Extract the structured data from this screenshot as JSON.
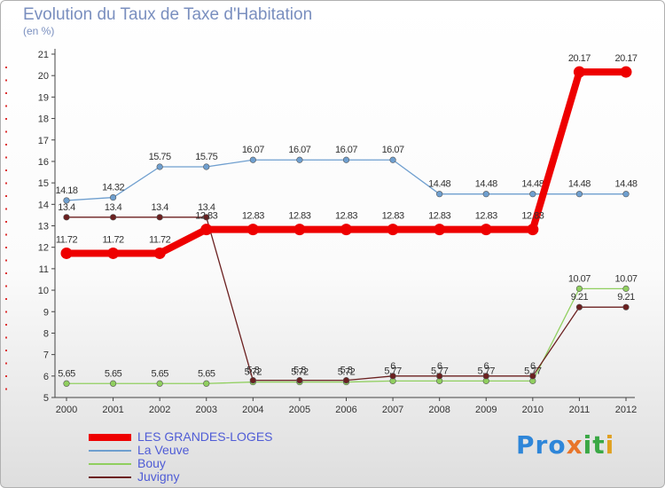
{
  "title": "Evolution du Taux de Taxe d'Habitation",
  "subtitle": "(en %)",
  "logo": {
    "text": "Proxiti",
    "p1": "Pro",
    "p2": "x",
    "p3": "it",
    "p4": "i"
  },
  "chart_data": {
    "type": "line",
    "title": "Evolution du Taux de Taxe d'Habitation",
    "ylabel": "(en %)",
    "xlabel": "",
    "ylim": [
      5,
      21
    ],
    "yticks": [
      "5",
      "6",
      "7",
      "8",
      "9",
      "10",
      "11",
      "12",
      "13",
      "14",
      "15",
      "16",
      "17",
      "18",
      "19",
      "20",
      "21"
    ],
    "categories": [
      "2000",
      "2001",
      "2002",
      "2003",
      "2004",
      "2005",
      "2006",
      "2007",
      "2008",
      "2009",
      "2010",
      "2011",
      "2012"
    ],
    "series": [
      {
        "name": "La Veuve",
        "color": "#6f9fcf",
        "thick": false,
        "values": [
          14.18,
          14.32,
          15.75,
          15.75,
          16.07,
          16.07,
          16.07,
          16.07,
          14.48,
          14.48,
          14.48,
          14.48,
          14.48
        ],
        "labels": [
          "14.18",
          "14.32",
          "15.75",
          "15.75",
          "16.07",
          "16.07",
          "16.07",
          "16.07",
          "14.48",
          "14.48",
          "14.48",
          "14.48",
          "14.48"
        ]
      },
      {
        "name": "Bouy",
        "color": "#90cf5f",
        "thick": false,
        "values": [
          5.65,
          5.65,
          5.65,
          5.65,
          5.72,
          5.72,
          5.72,
          5.77,
          5.77,
          5.77,
          5.77,
          10.07,
          10.07
        ],
        "labels": [
          "5.65",
          "5.65",
          "5.65",
          "5.65",
          "5.72",
          "5.72",
          "5.72",
          "5.77",
          "5.77",
          "5.77",
          "5.77",
          "10.07",
          "10.07"
        ]
      },
      {
        "name": "Juvigny",
        "color": "#6b2020",
        "thick": false,
        "values": [
          13.4,
          13.4,
          13.4,
          13.4,
          5.8,
          5.8,
          5.8,
          6,
          6,
          6,
          6,
          9.21,
          9.21
        ],
        "labels": [
          "13.4",
          "13.4",
          "13.4",
          "13.4",
          "5.8",
          "5.8",
          "5.8",
          "6",
          "6",
          "6",
          "6",
          "9.21",
          "9.21"
        ]
      },
      {
        "name": "LES GRANDES-LOGES",
        "color": "#ee0000",
        "thick": true,
        "values": [
          11.72,
          11.72,
          11.72,
          12.83,
          12.83,
          12.83,
          12.83,
          12.83,
          12.83,
          12.83,
          12.83,
          20.17,
          20.17
        ],
        "labels": [
          "11.72",
          "11.72",
          "11.72",
          "12.83",
          "12.83",
          "12.83",
          "12.83",
          "12.83",
          "12.83",
          "12.83",
          "12.83",
          "20.17",
          "20.17"
        ]
      }
    ],
    "legend_order": [
      "LES GRANDES-LOGES",
      "La Veuve",
      "Bouy",
      "Juvigny"
    ],
    "legend_position": "bottom-left",
    "grid": false
  }
}
